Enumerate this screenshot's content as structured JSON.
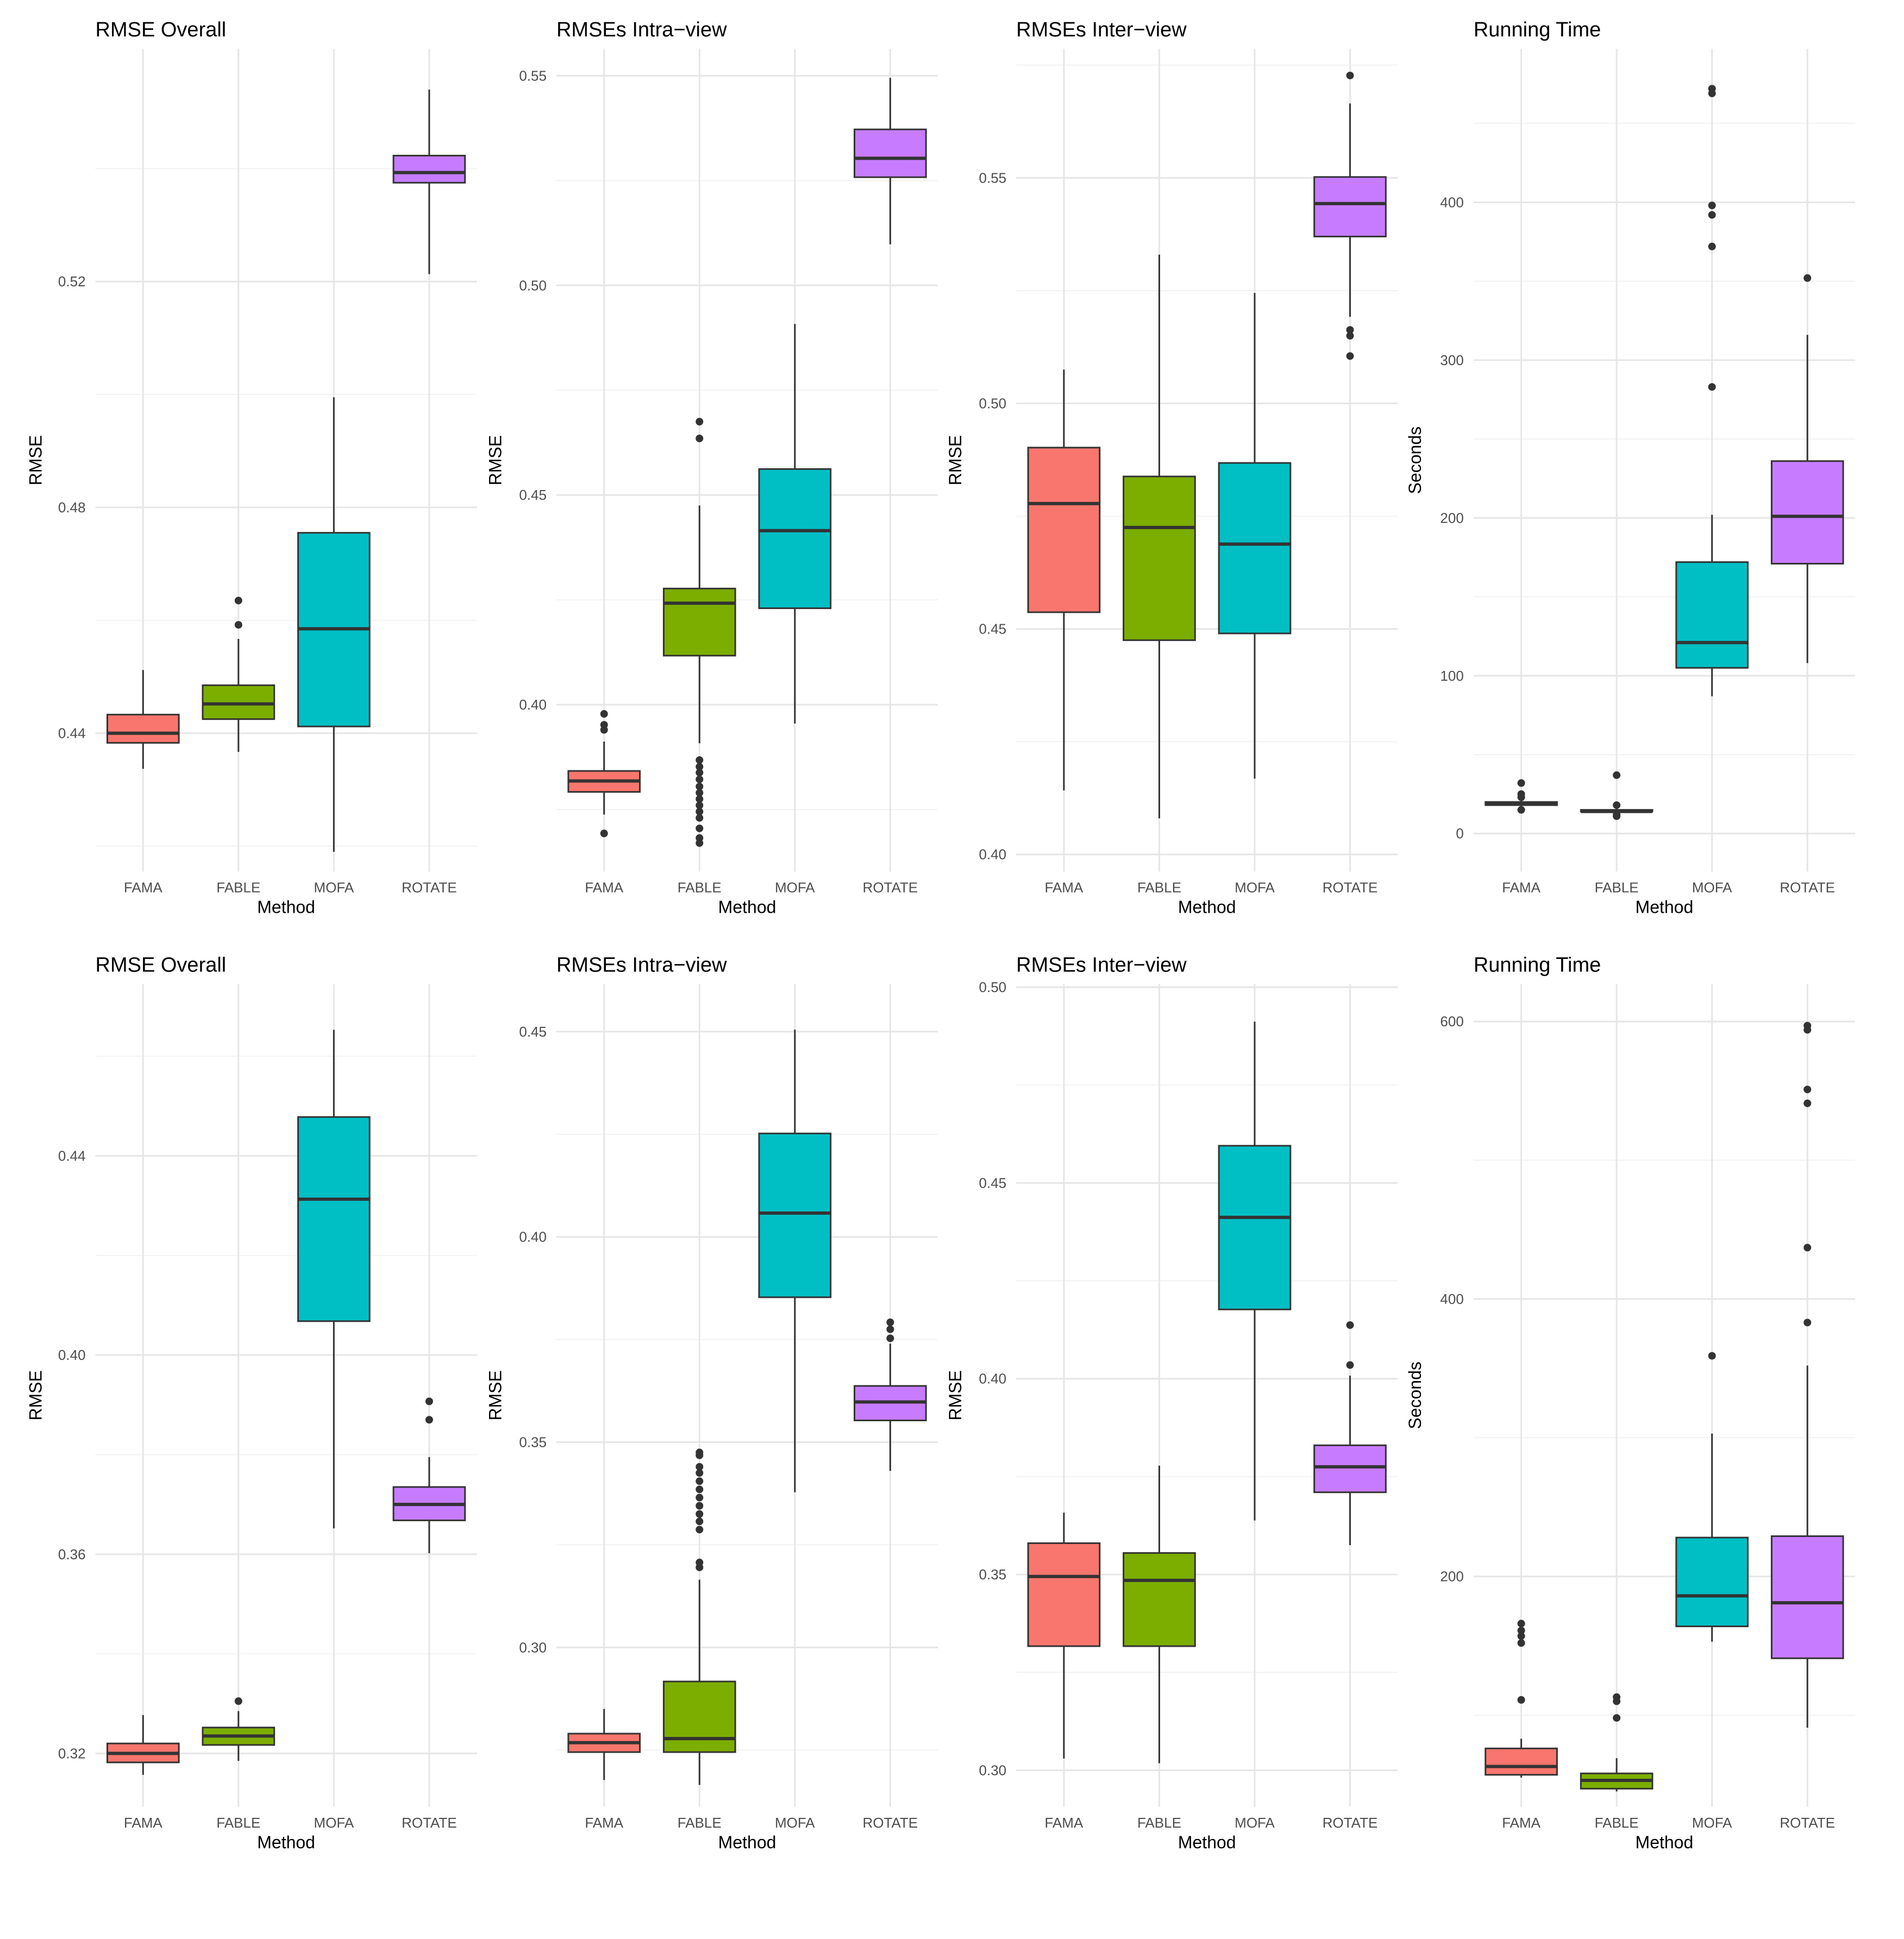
{
  "chart_data": [
    {
      "type": "box",
      "title": "RMSE Overall",
      "xlabel": "Method",
      "ylabel": "RMSE",
      "categories": [
        "FAMA",
        "FABLE",
        "MOFA",
        "ROTATE"
      ],
      "colors": [
        "#F8766D",
        "#7CAE00",
        "#00BFC4",
        "#C77CFF"
      ],
      "ylim": [
        0.4155,
        0.5612
      ],
      "yticks": [
        0.44,
        0.48,
        0.52
      ],
      "ytick_labels": [
        "0.44",
        "0.48",
        "0.52"
      ],
      "boxes": [
        {
          "method": "FAMA",
          "whisker_low": 0.4337,
          "q1": 0.4383,
          "median": 0.44,
          "q3": 0.4433,
          "whisker_high": 0.4512,
          "outliers": []
        },
        {
          "method": "FABLE",
          "whisker_low": 0.4367,
          "q1": 0.4425,
          "median": 0.4452,
          "q3": 0.4485,
          "whisker_high": 0.4567,
          "outliers": [
            0.4592,
            0.4635
          ]
        },
        {
          "method": "MOFA",
          "whisker_low": 0.419,
          "q1": 0.4412,
          "median": 0.4585,
          "q3": 0.4755,
          "whisker_high": 0.4995,
          "outliers": []
        },
        {
          "method": "ROTATE",
          "whisker_low": 0.5213,
          "q1": 0.5375,
          "median": 0.5393,
          "q3": 0.5423,
          "whisker_high": 0.554,
          "outliers": []
        }
      ]
    },
    {
      "type": "box",
      "title": "RMSEs Intra−view",
      "xlabel": "Method",
      "ylabel": "RMSE",
      "categories": [
        "FAMA",
        "FABLE",
        "MOFA",
        "ROTATE"
      ],
      "colors": [
        "#F8766D",
        "#7CAE00",
        "#00BFC4",
        "#C77CFF"
      ],
      "ylim": [
        0.3602,
        0.5564
      ],
      "yticks": [
        0.4,
        0.45,
        0.5,
        0.55
      ],
      "ytick_labels": [
        "0.40",
        "0.45",
        "0.50",
        "0.55"
      ],
      "boxes": [
        {
          "method": "FAMA",
          "whisker_low": 0.3738,
          "q1": 0.3792,
          "median": 0.3818,
          "q3": 0.3842,
          "whisker_high": 0.3912,
          "outliers": [
            0.3693,
            0.394,
            0.3952,
            0.3978
          ]
        },
        {
          "method": "FABLE",
          "whisker_low": 0.3908,
          "q1": 0.4117,
          "median": 0.4242,
          "q3": 0.4277,
          "whisker_high": 0.4475,
          "outliers": [
            0.367,
            0.3682,
            0.3705,
            0.373,
            0.3745,
            0.376,
            0.3775,
            0.379,
            0.3805,
            0.3822,
            0.3838,
            0.3852,
            0.3868,
            0.4635,
            0.4675
          ]
        },
        {
          "method": "MOFA",
          "whisker_low": 0.3955,
          "q1": 0.423,
          "median": 0.4415,
          "q3": 0.4562,
          "whisker_high": 0.4908,
          "outliers": []
        },
        {
          "method": "ROTATE",
          "whisker_low": 0.5098,
          "q1": 0.5258,
          "median": 0.5303,
          "q3": 0.5372,
          "whisker_high": 0.5495,
          "outliers": []
        }
      ]
    },
    {
      "type": "box",
      "title": "RMSEs Inter−view",
      "xlabel": "Method",
      "ylabel": "RMSE",
      "categories": [
        "FAMA",
        "FABLE",
        "MOFA",
        "ROTATE"
      ],
      "colors": [
        "#F8766D",
        "#7CAE00",
        "#00BFC4",
        "#C77CFF"
      ],
      "ylim": [
        0.3962,
        0.5786
      ],
      "yticks": [
        0.4,
        0.45,
        0.5,
        0.55
      ],
      "ytick_labels": [
        "0.40",
        "0.45",
        "0.50",
        "0.55"
      ],
      "boxes": [
        {
          "method": "FAMA",
          "whisker_low": 0.4142,
          "q1": 0.4537,
          "median": 0.4778,
          "q3": 0.4902,
          "whisker_high": 0.5075,
          "outliers": []
        },
        {
          "method": "FABLE",
          "whisker_low": 0.408,
          "q1": 0.4475,
          "median": 0.4725,
          "q3": 0.4838,
          "whisker_high": 0.533,
          "outliers": []
        },
        {
          "method": "MOFA",
          "whisker_low": 0.4168,
          "q1": 0.449,
          "median": 0.4688,
          "q3": 0.4868,
          "whisker_high": 0.5245,
          "outliers": []
        },
        {
          "method": "ROTATE",
          "whisker_low": 0.5192,
          "q1": 0.537,
          "median": 0.5443,
          "q3": 0.5502,
          "whisker_high": 0.5665,
          "outliers": [
            0.5105,
            0.515,
            0.5163,
            0.5727
          ]
        }
      ]
    },
    {
      "type": "box",
      "title": "Running Time",
      "xlabel": "Method",
      "ylabel": "Seconds",
      "categories": [
        "FAMA",
        "FABLE",
        "MOFA",
        "ROTATE"
      ],
      "colors": [
        "#F8766D",
        "#7CAE00",
        "#00BFC4",
        "#C77CFF"
      ],
      "ylim": [
        -24.1,
        497.2
      ],
      "yticks": [
        0,
        100,
        200,
        300,
        400
      ],
      "ytick_labels": [
        "0",
        "100",
        "200",
        "300",
        "400"
      ],
      "boxes": [
        {
          "method": "FAMA",
          "whisker_low": 16,
          "q1": 18,
          "median": 19,
          "q3": 20,
          "whisker_high": 22,
          "outliers": [
            15,
            23,
            25,
            32
          ]
        },
        {
          "method": "FABLE",
          "whisker_low": 13,
          "q1": 14,
          "median": 14,
          "q3": 15,
          "whisker_high": 16,
          "outliers": [
            11,
            12,
            18,
            37
          ]
        },
        {
          "method": "MOFA",
          "whisker_low": 87,
          "q1": 105,
          "median": 121,
          "q3": 172,
          "whisker_high": 202,
          "outliers": [
            283,
            372,
            392,
            398,
            469,
            472
          ]
        },
        {
          "method": "ROTATE",
          "whisker_low": 108,
          "q1": 171,
          "median": 201,
          "q3": 236,
          "whisker_high": 316,
          "outliers": [
            352
          ]
        }
      ]
    },
    {
      "type": "box",
      "title": "RMSE Overall",
      "xlabel": "Method",
      "ylabel": "RMSE",
      "categories": [
        "FAMA",
        "FABLE",
        "MOFA",
        "ROTATE"
      ],
      "colors": [
        "#F8766D",
        "#7CAE00",
        "#00BFC4",
        "#C77CFF"
      ],
      "ylim": [
        0.3093,
        0.4745
      ],
      "yticks": [
        0.32,
        0.36,
        0.4,
        0.44
      ],
      "ytick_labels": [
        "0.32",
        "0.36",
        "0.40",
        "0.44"
      ],
      "boxes": [
        {
          "method": "FAMA",
          "whisker_low": 0.3157,
          "q1": 0.3182,
          "median": 0.32,
          "q3": 0.322,
          "whisker_high": 0.3277,
          "outliers": []
        },
        {
          "method": "FABLE",
          "whisker_low": 0.3185,
          "q1": 0.3217,
          "median": 0.3235,
          "q3": 0.3252,
          "whisker_high": 0.3285,
          "outliers": [
            0.3305
          ]
        },
        {
          "method": "MOFA",
          "whisker_low": 0.3652,
          "q1": 0.4068,
          "median": 0.4313,
          "q3": 0.4478,
          "whisker_high": 0.4653,
          "outliers": []
        },
        {
          "method": "ROTATE",
          "whisker_low": 0.3602,
          "q1": 0.3668,
          "median": 0.37,
          "q3": 0.3735,
          "whisker_high": 0.3795,
          "outliers": [
            0.387,
            0.3907
          ]
        }
      ]
    },
    {
      "type": "box",
      "title": "RMSEs Intra−view",
      "xlabel": "Method",
      "ylabel": "RMSE",
      "categories": [
        "FAMA",
        "FABLE",
        "MOFA",
        "ROTATE"
      ],
      "colors": [
        "#F8766D",
        "#7CAE00",
        "#00BFC4",
        "#C77CFF"
      ],
      "ylim": [
        0.2612,
        0.4616
      ],
      "yticks": [
        0.3,
        0.35,
        0.4,
        0.45
      ],
      "ytick_labels": [
        "0.30",
        "0.35",
        "0.40",
        "0.45"
      ],
      "boxes": [
        {
          "method": "FAMA",
          "whisker_low": 0.2677,
          "q1": 0.2745,
          "median": 0.2768,
          "q3": 0.279,
          "whisker_high": 0.285,
          "outliers": []
        },
        {
          "method": "FABLE",
          "whisker_low": 0.2665,
          "q1": 0.2745,
          "median": 0.2778,
          "q3": 0.2917,
          "whisker_high": 0.3165,
          "outliers": [
            0.3195,
            0.3207,
            0.3287,
            0.3307,
            0.3325,
            0.3345,
            0.3365,
            0.3385,
            0.3405,
            0.3425,
            0.344,
            0.3468,
            0.3475
          ]
        },
        {
          "method": "MOFA",
          "whisker_low": 0.3378,
          "q1": 0.3853,
          "median": 0.4058,
          "q3": 0.4252,
          "whisker_high": 0.4505,
          "outliers": []
        },
        {
          "method": "ROTATE",
          "whisker_low": 0.343,
          "q1": 0.3553,
          "median": 0.3598,
          "q3": 0.3637,
          "whisker_high": 0.374,
          "outliers": [
            0.3753,
            0.3775,
            0.3792
          ]
        }
      ]
    },
    {
      "type": "box",
      "title": "RMSEs Inter−view",
      "xlabel": "Method",
      "ylabel": "RMSE",
      "categories": [
        "FAMA",
        "FABLE",
        "MOFA",
        "ROTATE"
      ],
      "colors": [
        "#F8766D",
        "#7CAE00",
        "#00BFC4",
        "#C77CFF"
      ],
      "ylim": [
        0.2907,
        0.5008
      ],
      "yticks": [
        0.3,
        0.35,
        0.4,
        0.45,
        0.5
      ],
      "ytick_labels": [
        "0.30",
        "0.35",
        "0.40",
        "0.45",
        "0.50"
      ],
      "boxes": [
        {
          "method": "FAMA",
          "whisker_low": 0.303,
          "q1": 0.3317,
          "median": 0.3495,
          "q3": 0.358,
          "whisker_high": 0.3658,
          "outliers": []
        },
        {
          "method": "FABLE",
          "whisker_low": 0.3018,
          "q1": 0.3317,
          "median": 0.3485,
          "q3": 0.3555,
          "whisker_high": 0.3778,
          "outliers": []
        },
        {
          "method": "MOFA",
          "whisker_low": 0.3638,
          "q1": 0.4177,
          "median": 0.4412,
          "q3": 0.4595,
          "whisker_high": 0.4912,
          "outliers": []
        },
        {
          "method": "ROTATE",
          "whisker_low": 0.3575,
          "q1": 0.371,
          "median": 0.3775,
          "q3": 0.383,
          "whisker_high": 0.4008,
          "outliers": [
            0.4035,
            0.4137
          ]
        }
      ]
    },
    {
      "type": "box",
      "title": "Running Time",
      "xlabel": "Method",
      "ylabel": "Seconds",
      "categories": [
        "FAMA",
        "FABLE",
        "MOFA",
        "ROTATE"
      ],
      "colors": [
        "#F8766D",
        "#7CAE00",
        "#00BFC4",
        "#C77CFF"
      ],
      "ylim": [
        34,
        627
      ],
      "yticks": [
        200,
        400,
        600
      ],
      "ytick_labels": [
        "200",
        "400",
        "600"
      ],
      "boxes": [
        {
          "method": "FAMA",
          "whisker_low": 55,
          "q1": 57,
          "median": 63,
          "q3": 76,
          "whisker_high": 83,
          "outliers": [
            111,
            152,
            157,
            161,
            166
          ]
        },
        {
          "method": "FABLE",
          "whisker_low": 45,
          "q1": 47,
          "median": 53,
          "q3": 58,
          "whisker_high": 69,
          "outliers": [
            98,
            110,
            113
          ]
        },
        {
          "method": "MOFA",
          "whisker_low": 153,
          "q1": 164,
          "median": 186,
          "q3": 228,
          "whisker_high": 303,
          "outliers": [
            359
          ]
        },
        {
          "method": "ROTATE",
          "whisker_low": 91,
          "q1": 141,
          "median": 181,
          "q3": 229,
          "whisker_high": 352,
          "outliers": [
            383,
            437,
            541,
            551,
            594,
            597
          ]
        }
      ]
    }
  ]
}
